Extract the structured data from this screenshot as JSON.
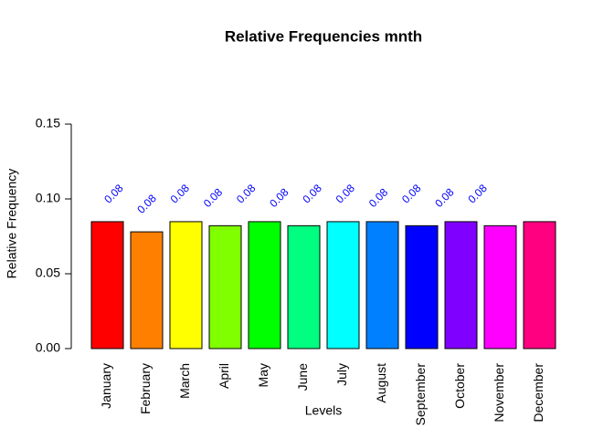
{
  "chart_data": {
    "type": "bar",
    "title": "Relative Frequencies mnth",
    "x_label": "Levels",
    "y_label": "Relative Frequency",
    "categories": [
      "January",
      "February",
      "March",
      "April",
      "May",
      "June",
      "July",
      "August",
      "September",
      "October",
      "November",
      "December"
    ],
    "values": [
      0.0848,
      0.078,
      0.0848,
      0.0821,
      0.0848,
      0.0821,
      0.0848,
      0.0848,
      0.0821,
      0.0848,
      0.0821,
      0.0848
    ],
    "value_labels": [
      "0.08",
      "0.08",
      "0.08",
      "0.08",
      "0.08",
      "0.08",
      "0.08",
      "0.08",
      "0.08",
      "0.08",
      "0.08",
      "0.08"
    ],
    "colors": [
      "#FF0000",
      "#FF8000",
      "#FFFF00",
      "#80FF00",
      "#00FF00",
      "#00FF80",
      "#00FFFF",
      "#0080FF",
      "#0000FF",
      "#8000FF",
      "#FF00FF",
      "#FF0080"
    ],
    "ylim": [
      0,
      0.15
    ],
    "yticks": [
      {
        "value": 0,
        "label": "0.00"
      },
      {
        "value": 0.05,
        "label": "0.05"
      },
      {
        "value": 0.1,
        "label": "0.10"
      },
      {
        "value": 0.15,
        "label": "0.15"
      }
    ],
    "grid": false
  }
}
